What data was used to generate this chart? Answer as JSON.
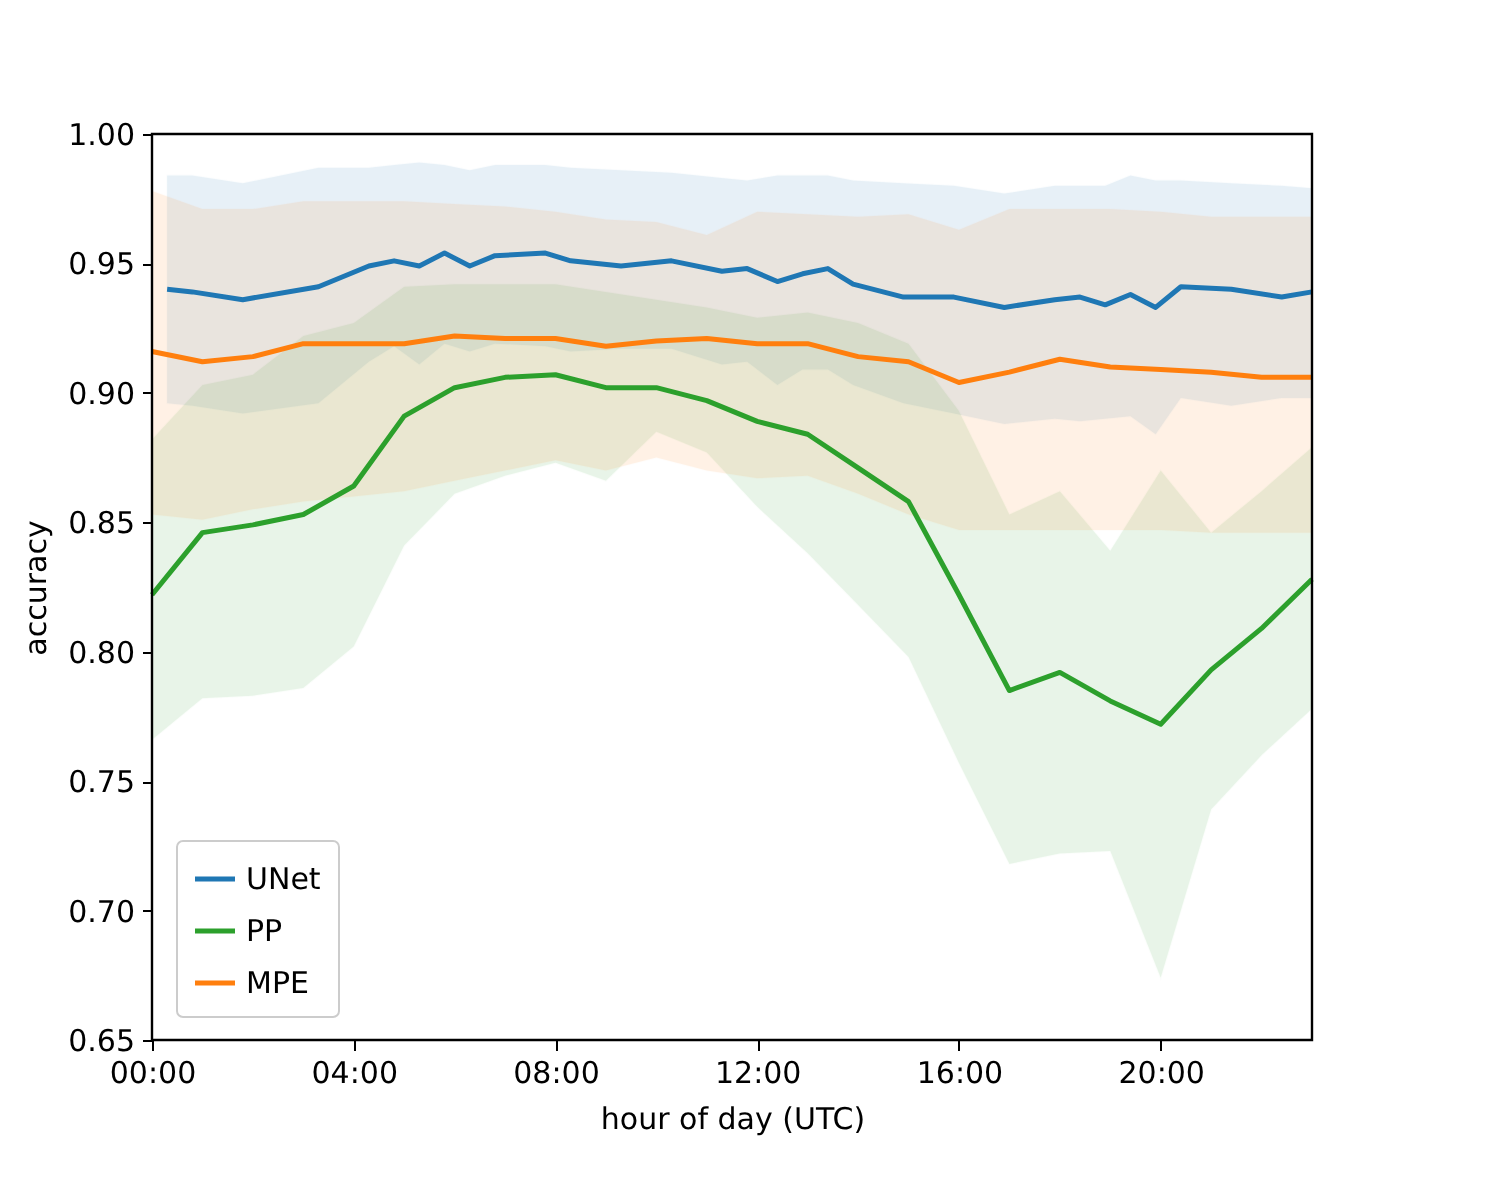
{
  "chart_data": {
    "type": "line",
    "xlabel": "hour of day (UTC)",
    "ylabel": "accuracy",
    "xlim": [
      0,
      23
    ],
    "ylim": [
      0.65,
      1.0
    ],
    "xticks": [
      {
        "value": 0,
        "label": "00:00"
      },
      {
        "value": 4,
        "label": "04:00"
      },
      {
        "value": 8,
        "label": "08:00"
      },
      {
        "value": 12,
        "label": "12:00"
      },
      {
        "value": 16,
        "label": "16:00"
      },
      {
        "value": 20,
        "label": "20:00"
      }
    ],
    "yticks": [
      {
        "value": 0.65,
        "label": "0.65"
      },
      {
        "value": 0.7,
        "label": "0.70"
      },
      {
        "value": 0.75,
        "label": "0.75"
      },
      {
        "value": 0.8,
        "label": "0.80"
      },
      {
        "value": 0.85,
        "label": "0.85"
      },
      {
        "value": 0.9,
        "label": "0.90"
      },
      {
        "value": 0.95,
        "label": "0.95"
      },
      {
        "value": 1.0,
        "label": "1.00"
      }
    ],
    "grid": false,
    "legend": "bottom left",
    "marker": "none",
    "line_style": "solid",
    "series": [
      {
        "name": "UNet",
        "color": "#1f77b4",
        "x": [
          0.3,
          0.8,
          1.8,
          3.3,
          4.3,
          4.8,
          5.3,
          5.8,
          6.3,
          6.8,
          7.8,
          8.3,
          9.3,
          10.3,
          11.3,
          11.8,
          12.4,
          12.9,
          13.4,
          13.9,
          14.9,
          15.9,
          16.9,
          17.9,
          18.4,
          18.9,
          19.4,
          19.9,
          20.4,
          21.4,
          22.4,
          23.0
        ],
        "values": [
          0.94,
          0.939,
          0.936,
          0.941,
          0.949,
          0.951,
          0.949,
          0.954,
          0.949,
          0.953,
          0.954,
          0.951,
          0.949,
          0.951,
          0.947,
          0.948,
          0.943,
          0.946,
          0.948,
          0.942,
          0.937,
          0.937,
          0.933,
          0.936,
          0.937,
          0.934,
          0.938,
          0.933,
          0.941,
          0.94,
          0.937,
          0.939
        ],
        "upper": [
          0.984,
          0.984,
          0.981,
          0.987,
          0.987,
          0.988,
          0.989,
          0.988,
          0.986,
          0.988,
          0.988,
          0.987,
          0.986,
          0.985,
          0.983,
          0.982,
          0.984,
          0.984,
          0.984,
          0.982,
          0.981,
          0.98,
          0.977,
          0.98,
          0.98,
          0.98,
          0.984,
          0.982,
          0.982,
          0.981,
          0.98,
          0.979
        ],
        "lower": [
          0.896,
          0.895,
          0.892,
          0.896,
          0.912,
          0.918,
          0.911,
          0.919,
          0.916,
          0.919,
          0.918,
          0.916,
          0.917,
          0.917,
          0.911,
          0.912,
          0.903,
          0.909,
          0.909,
          0.903,
          0.896,
          0.892,
          0.888,
          0.89,
          0.889,
          0.89,
          0.891,
          0.884,
          0.898,
          0.895,
          0.898,
          0.898
        ]
      },
      {
        "name": "PP",
        "color": "#2ca02c",
        "x": [
          0,
          1,
          2,
          3,
          4,
          5,
          6,
          7,
          8,
          9,
          10,
          11,
          12,
          13,
          14,
          15,
          16,
          17,
          18,
          19,
          20,
          21,
          22,
          23
        ],
        "values": [
          0.822,
          0.846,
          0.849,
          0.853,
          0.864,
          0.891,
          0.902,
          0.906,
          0.907,
          0.902,
          0.902,
          0.897,
          0.889,
          0.884,
          0.871,
          0.858,
          0.822,
          0.785,
          0.792,
          0.781,
          0.772,
          0.793,
          0.809,
          0.828
        ],
        "upper": [
          0.882,
          0.903,
          0.907,
          0.922,
          0.927,
          0.941,
          0.942,
          0.942,
          0.942,
          0.939,
          0.936,
          0.933,
          0.929,
          0.931,
          0.927,
          0.919,
          0.893,
          0.853,
          0.862,
          0.839,
          0.87,
          0.846,
          0.862,
          0.879
        ],
        "lower": [
          0.766,
          0.782,
          0.783,
          0.786,
          0.802,
          0.841,
          0.861,
          0.868,
          0.873,
          0.866,
          0.885,
          0.877,
          0.856,
          0.838,
          0.818,
          0.798,
          0.757,
          0.718,
          0.722,
          0.723,
          0.674,
          0.739,
          0.76,
          0.778
        ]
      },
      {
        "name": "MPE",
        "color": "#ff7f0e",
        "x": [
          0,
          1,
          2,
          3,
          4,
          5,
          6,
          7,
          8,
          9,
          10,
          11,
          12,
          13,
          14,
          15,
          16,
          17,
          18,
          19,
          20,
          21,
          22,
          23
        ],
        "values": [
          0.916,
          0.912,
          0.914,
          0.919,
          0.919,
          0.919,
          0.922,
          0.921,
          0.921,
          0.918,
          0.92,
          0.921,
          0.919,
          0.919,
          0.914,
          0.912,
          0.904,
          0.908,
          0.913,
          0.91,
          0.909,
          0.908,
          0.906,
          0.906
        ],
        "upper": [
          0.978,
          0.971,
          0.971,
          0.974,
          0.974,
          0.974,
          0.973,
          0.972,
          0.97,
          0.967,
          0.966,
          0.961,
          0.97,
          0.969,
          0.968,
          0.969,
          0.963,
          0.971,
          0.971,
          0.971,
          0.97,
          0.968,
          0.968,
          0.968
        ],
        "lower": [
          0.853,
          0.851,
          0.855,
          0.858,
          0.86,
          0.862,
          0.866,
          0.87,
          0.874,
          0.87,
          0.875,
          0.87,
          0.867,
          0.868,
          0.861,
          0.853,
          0.847,
          0.847,
          0.847,
          0.847,
          0.847,
          0.846,
          0.846,
          0.846
        ]
      }
    ]
  }
}
